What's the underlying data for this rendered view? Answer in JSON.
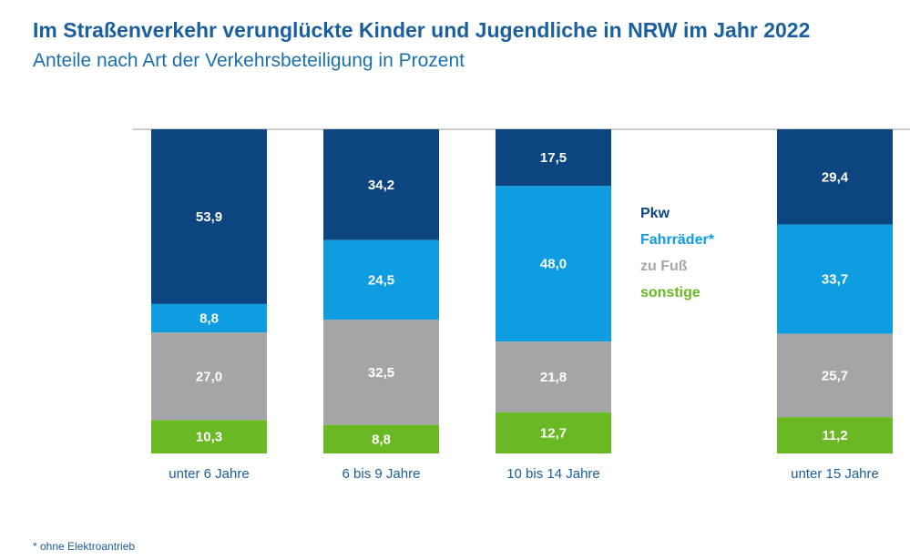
{
  "title": "Im Straßenverkehr verunglückte Kinder und Jugendliche in NRW im Jahr 2022",
  "subtitle": "Anteile nach Art der Verkehrsbeteiligung in Prozent",
  "footnote": "* ohne Elektroantrieb",
  "colors": {
    "Pkw": "#0d4580",
    "Fahrräder*": "#0d9de0",
    "zu Fuß": "#a3a5a8",
    "sonstige": "#6ab823",
    "axis": "#9a9a9a"
  },
  "chart_data": {
    "type": "bar",
    "stacked": true,
    "categories": [
      "unter 6 Jahre",
      "6 bis 9 Jahre",
      "10 bis 14 Jahre",
      "unter 15 Jahre"
    ],
    "series": [
      {
        "name": "Pkw",
        "values": [
          "53,9",
          "34,2",
          "17,5",
          "29,4"
        ]
      },
      {
        "name": "Fahrräder*",
        "values": [
          "8,8",
          "24,5",
          "48,0",
          "33,7"
        ]
      },
      {
        "name": "zu Fuß",
        "values": [
          "27,0",
          "32,5",
          "21,8",
          "25,7"
        ]
      },
      {
        "name": "sonstige",
        "values": [
          "10,3",
          "8,8",
          "12,7",
          "11,2"
        ]
      }
    ],
    "legend": [
      "Pkw",
      "Fahrräder*",
      "zu Fuß",
      "sonstige"
    ],
    "legend_position": "between third and fourth bar",
    "ylim": [
      0,
      100
    ]
  }
}
